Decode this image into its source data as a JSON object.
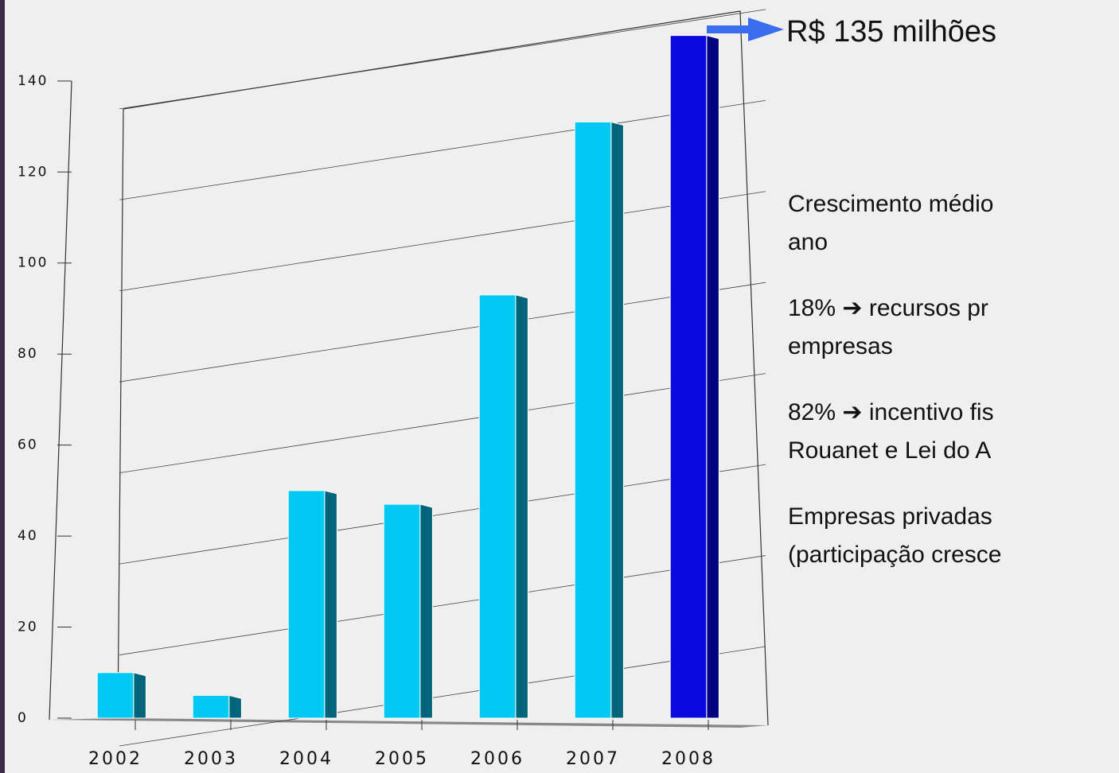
{
  "chart_data": {
    "type": "bar",
    "categories": [
      "2002",
      "2003",
      "2004",
      "2005",
      "2006",
      "2007",
      "2008"
    ],
    "values": [
      10,
      5,
      50,
      47,
      93,
      131,
      150
    ],
    "colors": [
      "#00c8f5",
      "#00c8f5",
      "#00c8f5",
      "#00c8f5",
      "#00c8f5",
      "#00c8f5",
      "#0a0ae0"
    ],
    "side_colors": [
      "#00657a",
      "#00657a",
      "#00657a",
      "#00657a",
      "#00657a",
      "#00657a",
      "#000080"
    ],
    "ylim": [
      0,
      155
    ],
    "yticks": [
      0,
      20,
      40,
      60,
      80,
      100,
      120,
      140
    ],
    "grid": true,
    "annotation": "R$ 135 milhões",
    "notes": [
      [
        "Crescimento médio",
        "ano"
      ],
      [
        "18% ➔ recursos pr",
        "empresas"
      ],
      [
        "82% ➔ incentivo fis",
        "Rouanet e Lei do A"
      ],
      [
        "Empresas privadas",
        "(participação cresce"
      ]
    ]
  }
}
